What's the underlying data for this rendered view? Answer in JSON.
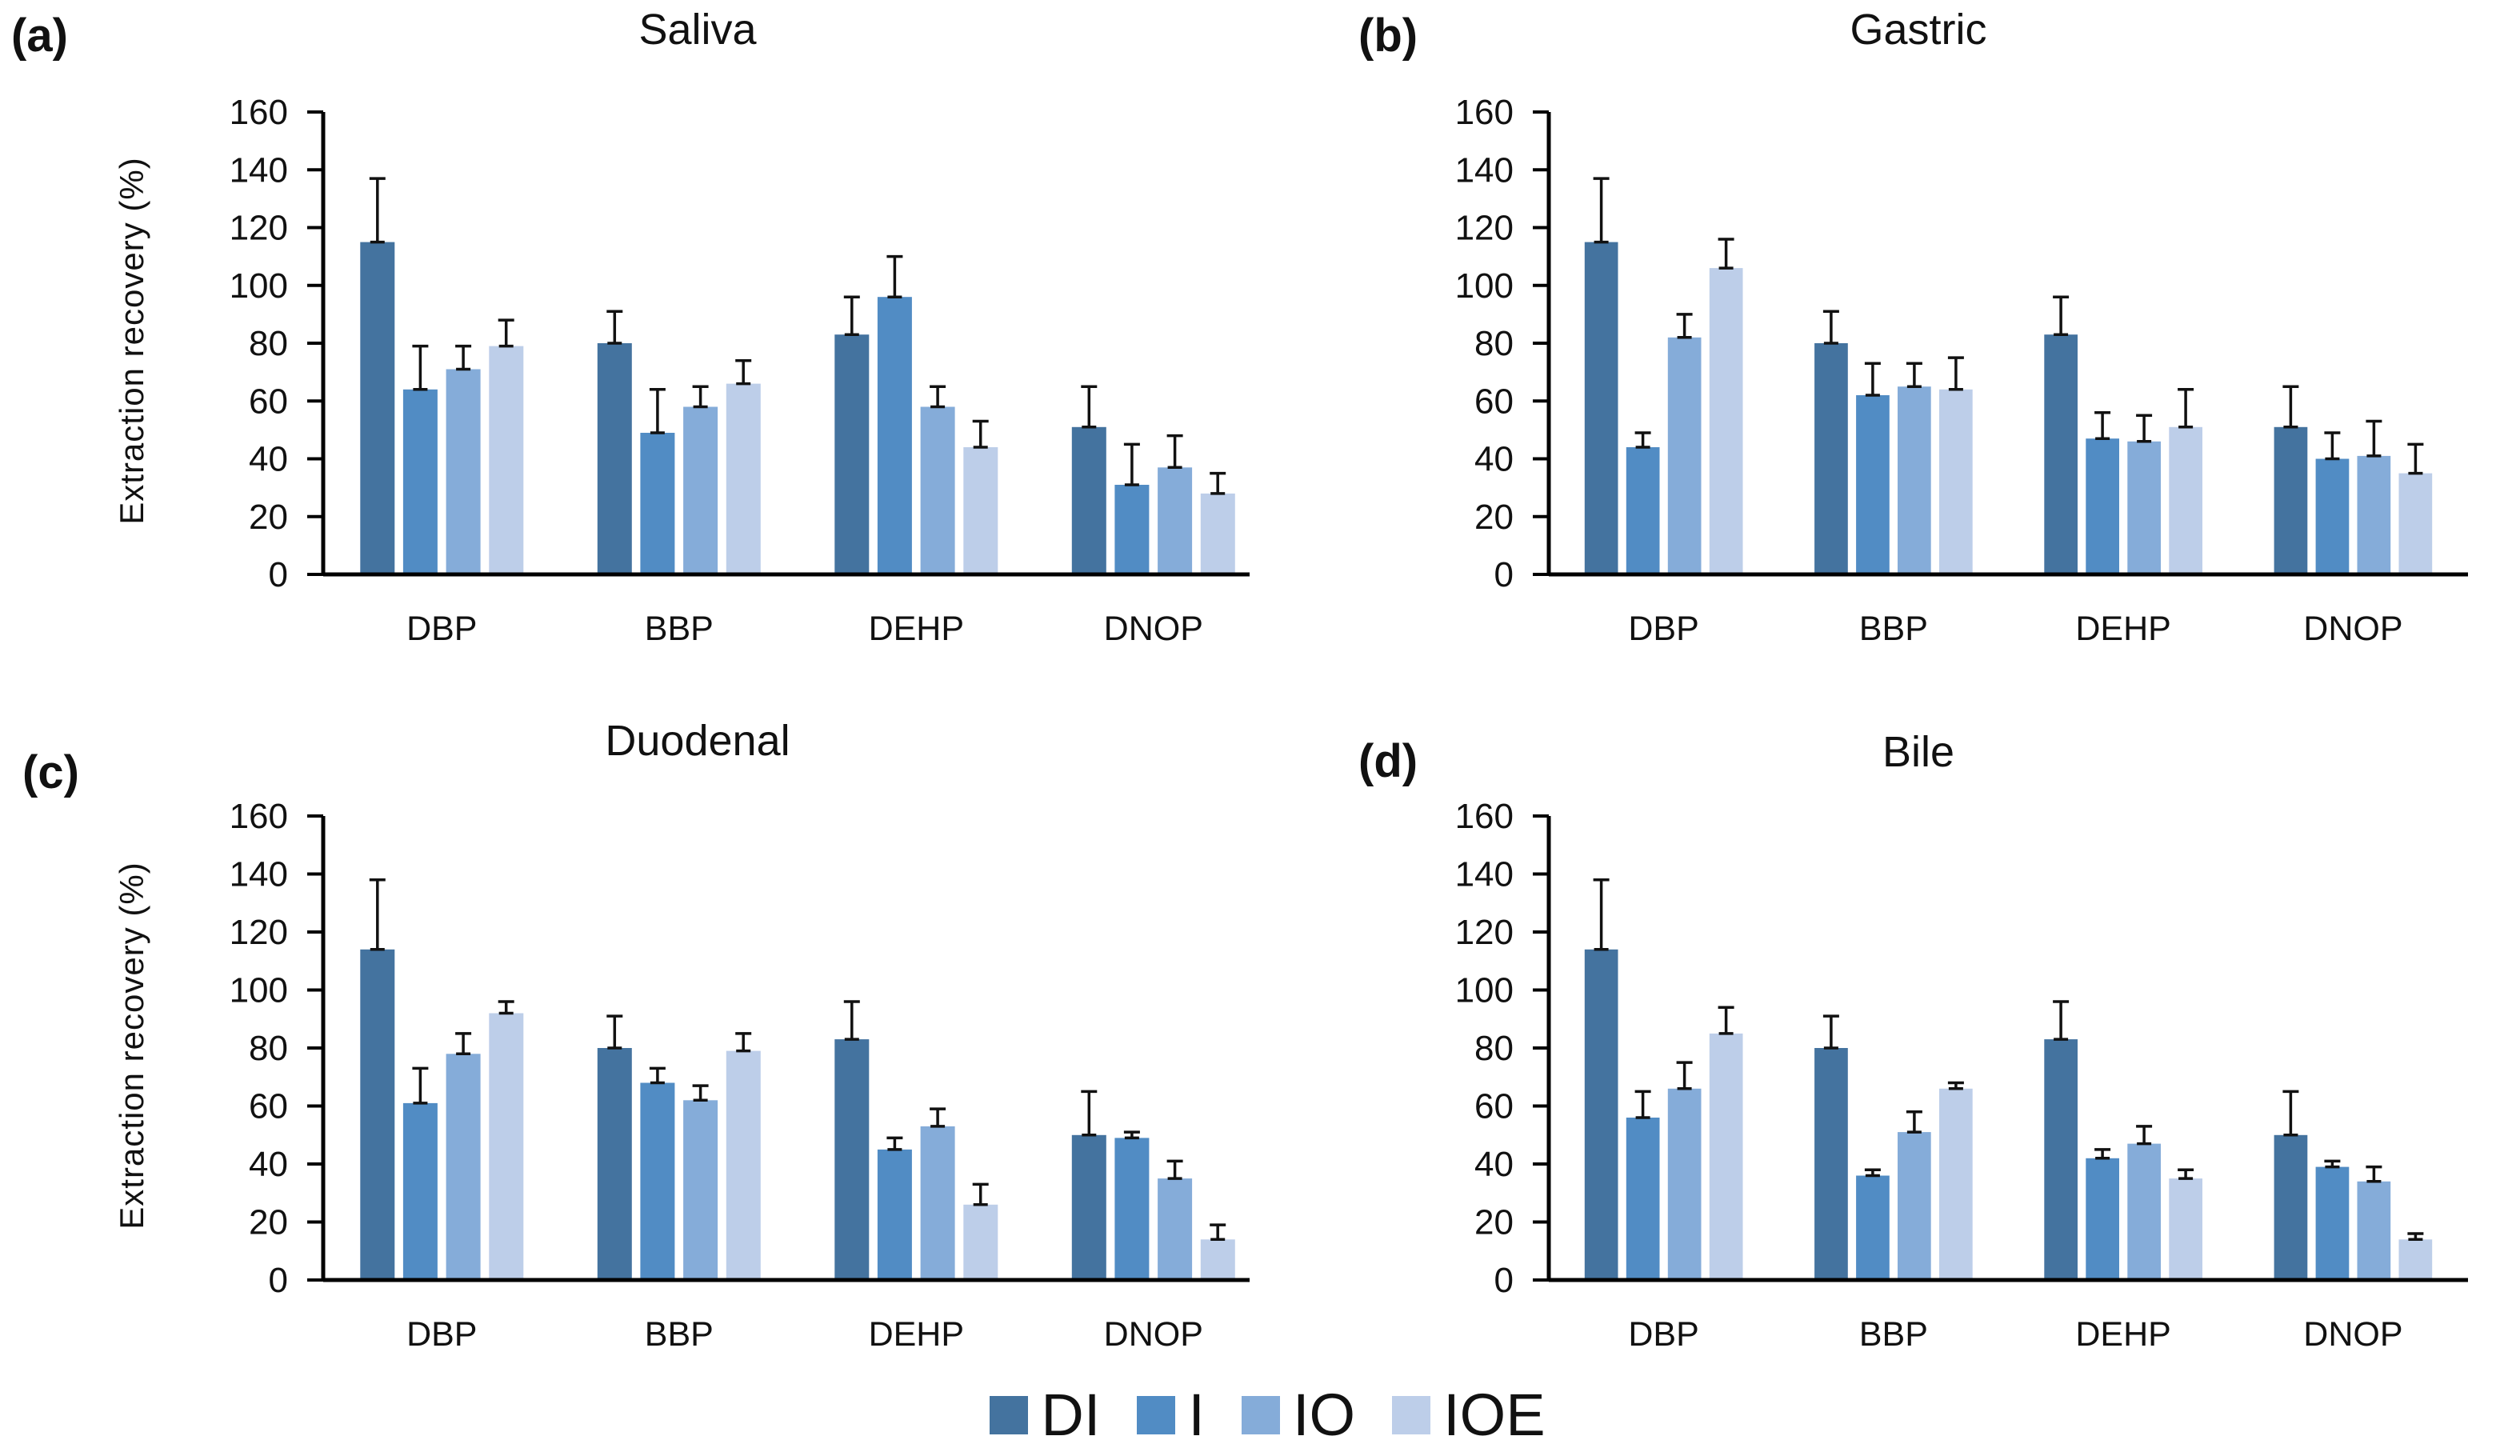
{
  "chart_data": [
    {
      "type": "bar",
      "panel_label": "(a)",
      "title": "Saliva",
      "categories": [
        "DBP",
        "BBP",
        "DEHP",
        "DNOP"
      ],
      "ylabel": "Extraction recovery (%)",
      "ylim": [
        0,
        160
      ],
      "ytick_step": 20,
      "grid": false,
      "error_bars": "upper",
      "series": [
        {
          "name": "DI",
          "color": "#44739F",
          "values": [
            115,
            80,
            83,
            51
          ],
          "errors": [
            22,
            11,
            13,
            14
          ]
        },
        {
          "name": "I",
          "color": "#518CC4",
          "values": [
            64,
            49,
            96,
            31
          ],
          "errors": [
            15,
            15,
            14,
            14
          ]
        },
        {
          "name": "IO",
          "color": "#85ACD9",
          "values": [
            71,
            58,
            58,
            37
          ],
          "errors": [
            8,
            7,
            7,
            11
          ]
        },
        {
          "name": "IOE",
          "color": "#BDCEE9",
          "values": [
            79,
            66,
            44,
            28
          ],
          "errors": [
            9,
            8,
            9,
            7
          ]
        }
      ]
    },
    {
      "type": "bar",
      "panel_label": "(b)",
      "title": "Gastric",
      "categories": [
        "DBP",
        "BBP",
        "DEHP",
        "DNOP"
      ],
      "ylabel": "",
      "ylim": [
        0,
        160
      ],
      "ytick_step": 20,
      "grid": false,
      "error_bars": "upper",
      "series": [
        {
          "name": "DI",
          "color": "#44739F",
          "values": [
            115,
            80,
            83,
            51
          ],
          "errors": [
            22,
            11,
            13,
            14
          ]
        },
        {
          "name": "I",
          "color": "#518CC4",
          "values": [
            44,
            62,
            47,
            40
          ],
          "errors": [
            5,
            11,
            9,
            9
          ]
        },
        {
          "name": "IO",
          "color": "#85ACD9",
          "values": [
            82,
            65,
            46,
            41
          ],
          "errors": [
            8,
            8,
            9,
            12
          ]
        },
        {
          "name": "IOE",
          "color": "#BDCEE9",
          "values": [
            106,
            64,
            51,
            35
          ],
          "errors": [
            10,
            11,
            13,
            10
          ]
        }
      ]
    },
    {
      "type": "bar",
      "panel_label": "(c)",
      "title": "Duodenal",
      "categories": [
        "DBP",
        "BBP",
        "DEHP",
        "DNOP"
      ],
      "ylabel": "Extraction recovery (%)",
      "ylim": [
        0,
        160
      ],
      "ytick_step": 20,
      "grid": false,
      "error_bars": "upper",
      "series": [
        {
          "name": "DI",
          "color": "#44739F",
          "values": [
            114,
            80,
            83,
            50
          ],
          "errors": [
            24,
            11,
            13,
            15
          ]
        },
        {
          "name": "I",
          "color": "#518CC4",
          "values": [
            61,
            68,
            45,
            49
          ],
          "errors": [
            12,
            5,
            4,
            2
          ]
        },
        {
          "name": "IO",
          "color": "#85ACD9",
          "values": [
            78,
            62,
            53,
            35
          ],
          "errors": [
            7,
            5,
            6,
            6
          ]
        },
        {
          "name": "IOE",
          "color": "#BDCEE9",
          "values": [
            92,
            79,
            26,
            14
          ],
          "errors": [
            4,
            6,
            7,
            5
          ]
        }
      ]
    },
    {
      "type": "bar",
      "panel_label": "(d)",
      "title": "Bile",
      "categories": [
        "DBP",
        "BBP",
        "DEHP",
        "DNOP"
      ],
      "ylabel": "",
      "ylim": [
        0,
        160
      ],
      "ytick_step": 20,
      "grid": false,
      "error_bars": "upper",
      "series": [
        {
          "name": "DI",
          "color": "#44739F",
          "values": [
            114,
            80,
            83,
            50
          ],
          "errors": [
            24,
            11,
            13,
            15
          ]
        },
        {
          "name": "I",
          "color": "#518CC4",
          "values": [
            56,
            36,
            42,
            39
          ],
          "errors": [
            9,
            2,
            3,
            2
          ]
        },
        {
          "name": "IO",
          "color": "#85ACD9",
          "values": [
            66,
            51,
            47,
            34
          ],
          "errors": [
            9,
            7,
            6,
            5
          ]
        },
        {
          "name": "IOE",
          "color": "#BDCEE9",
          "values": [
            85,
            66,
            35,
            14
          ],
          "errors": [
            9,
            2,
            3,
            2
          ]
        }
      ]
    }
  ],
  "legend": {
    "position": "bottom",
    "items": [
      {
        "label": "DI",
        "color": "#44739F"
      },
      {
        "label": "I",
        "color": "#518CC4"
      },
      {
        "label": "IO",
        "color": "#85ACD9"
      },
      {
        "label": "IOE",
        "color": "#BDCEE9"
      }
    ]
  }
}
